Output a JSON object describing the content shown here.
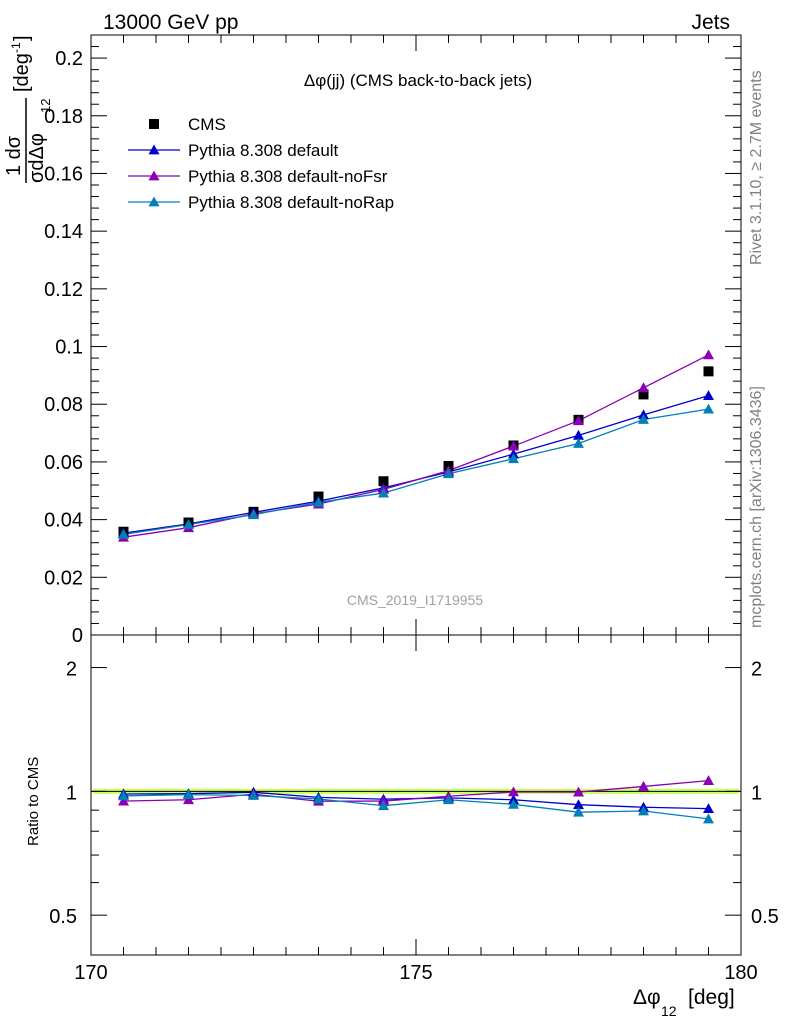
{
  "header": {
    "left": "13000 GeV pp",
    "right": "Jets"
  },
  "side_text": {
    "top": "Rivet 3.1.10, ≥ 2.7M events",
    "bottom": "mcplots.cern.ch [arXiv:1306.3436]"
  },
  "colors": {
    "cms": "#000000",
    "pythia_default": "#0000cc",
    "pythia_nofsr": "#8a00b4",
    "pythia_norap": "#0080b4",
    "band": "#ccff66"
  },
  "chart_data": [
    {
      "type": "line",
      "panel": "main",
      "title": "Δφ(jj) (CMS back-to-back jets)",
      "watermark": "CMS_2019_I1719955",
      "ylabel_top": "1 dσ",
      "ylabel_bottom": "σdΔφ",
      "ylabel_sub": "12",
      "ylabel_unit": "[deg",
      "ylabel_unit_sup": "-1",
      "ylabel_unit_close": "]",
      "xlim": [
        170,
        180
      ],
      "ylim": [
        0,
        0.208
      ],
      "yticks": [
        0,
        0.02,
        0.04,
        0.06,
        0.08,
        0.1,
        0.12,
        0.14,
        0.16,
        0.18,
        0.2
      ],
      "ytick_labels": [
        "0",
        "0.02",
        "0.04",
        "0.06",
        "0.08",
        "0.1",
        "0.12",
        "0.14",
        "0.16",
        "0.18",
        "0.2"
      ],
      "legend_position": "top-left",
      "x": [
        170.5,
        171.5,
        172.5,
        173.5,
        174.5,
        175.5,
        176.5,
        177.5,
        178.5,
        179.5
      ],
      "series": [
        {
          "name": "CMS",
          "marker": "square",
          "values": [
            0.0358,
            0.039,
            0.0427,
            0.048,
            0.0533,
            0.0586,
            0.0657,
            0.0746,
            0.0834,
            0.0914
          ]
        },
        {
          "name": "Pythia 8.308 default",
          "marker": "triangle",
          "values": [
            0.0353,
            0.0385,
            0.0425,
            0.0464,
            0.051,
            0.0565,
            0.0627,
            0.0692,
            0.0763,
            0.083
          ]
        },
        {
          "name": "Pythia 8.308 default-noFsr",
          "marker": "triangle",
          "values": [
            0.0339,
            0.0372,
            0.042,
            0.0454,
            0.0505,
            0.057,
            0.0655,
            0.0743,
            0.0857,
            0.0971
          ]
        },
        {
          "name": "Pythia 8.308 default-noRap",
          "marker": "triangle",
          "values": [
            0.0349,
            0.0383,
            0.0417,
            0.046,
            0.0492,
            0.0559,
            0.0611,
            0.0664,
            0.0747,
            0.0783
          ]
        }
      ]
    },
    {
      "type": "line",
      "panel": "ratio",
      "ylabel": "Ratio to CMS",
      "xlabel": "Δφ",
      "xlabel_sub": "12",
      "xlabel_unit": "[deg]",
      "scale_y": "log",
      "xlim": [
        170,
        180
      ],
      "ylim": [
        0.4,
        2.4
      ],
      "yticks": [
        0.5,
        1,
        2
      ],
      "ytick_labels": [
        "0.5",
        "1",
        "2"
      ],
      "xticks": [
        170,
        175,
        180
      ],
      "xtick_labels": [
        "170",
        "175",
        "180"
      ],
      "x": [
        170.5,
        171.5,
        172.5,
        173.5,
        174.5,
        175.5,
        176.5,
        177.5,
        178.5,
        179.5
      ],
      "band": [
        0.985,
        1.015
      ],
      "series": [
        {
          "name": "Pythia 8.308 default",
          "values": [
            0.985,
            0.987,
            0.995,
            0.967,
            0.957,
            0.964,
            0.954,
            0.928,
            0.915,
            0.908
          ]
        },
        {
          "name": "Pythia 8.308 default-noFsr",
          "values": [
            0.947,
            0.954,
            0.984,
            0.946,
            0.947,
            0.973,
            0.997,
            0.996,
            1.028,
            1.062
          ]
        },
        {
          "name": "Pythia 8.308 default-noRap",
          "values": [
            0.975,
            0.982,
            0.977,
            0.958,
            0.923,
            0.954,
            0.93,
            0.89,
            0.896,
            0.857
          ]
        }
      ]
    }
  ]
}
